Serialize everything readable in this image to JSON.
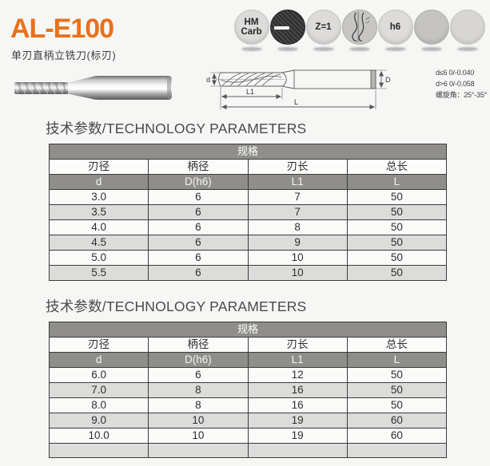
{
  "header": {
    "model": "AL-E100",
    "subtitle": "单刃直柄立铣刀(标刃)"
  },
  "badges": [
    {
      "label": "HM\nCarb",
      "name": "material-hm-carbide"
    },
    {
      "label": "",
      "name": "carbon-coating"
    },
    {
      "label": "Z=1",
      "name": "flute-count"
    },
    {
      "label": "",
      "name": "flute-sketch"
    },
    {
      "label": "h6",
      "name": "shank-tolerance"
    },
    {
      "label": "",
      "name": "blank-1"
    },
    {
      "label": "",
      "name": "blank-2"
    }
  ],
  "drawing": {
    "dim_d": "d",
    "dim_D": "D",
    "dim_L1": "L1",
    "dim_L": "L",
    "notes": [
      "d≤6  0/-0.040",
      "d>6  0/-0.058",
      "螺旋角：25°-35°"
    ]
  },
  "sections": [
    {
      "heading": "技术参数/TECHNOLOGY PARAMETERS",
      "table": {
        "group_header": "规格",
        "columns": [
          "刃径",
          "柄径",
          "刃长",
          "总长"
        ],
        "symbols": [
          "d",
          "D(h6)",
          "L1",
          "L"
        ],
        "rows": [
          [
            "3.0",
            "6",
            "7",
            "50"
          ],
          [
            "3.5",
            "6",
            "7",
            "50"
          ],
          [
            "4.0",
            "6",
            "8",
            "50"
          ],
          [
            "4.5",
            "6",
            "9",
            "50"
          ],
          [
            "5.0",
            "6",
            "10",
            "50"
          ],
          [
            "5.5",
            "6",
            "10",
            "50"
          ]
        ]
      }
    },
    {
      "heading": "技术参数/TECHNOLOGY PARAMETERS",
      "table": {
        "group_header": "规格",
        "columns": [
          "刃径",
          "柄径",
          "刃长",
          "总长"
        ],
        "symbols": [
          "d",
          "D(h6)",
          "L1",
          "L"
        ],
        "rows": [
          [
            "6.0",
            "6",
            "12",
            "50"
          ],
          [
            "7.0",
            "8",
            "16",
            "50"
          ],
          [
            "8.0",
            "8",
            "16",
            "50"
          ],
          [
            "9.0",
            "10",
            "19",
            "60"
          ],
          [
            "10.0",
            "10",
            "19",
            "60"
          ],
          [
            "",
            "",
            "",
            ""
          ]
        ]
      }
    }
  ],
  "colors": {
    "accent_orange": "#e8711c",
    "table_header_bg": "#908e8b",
    "row_stripe": "#dcdcda",
    "page_bg": "#f6f6f5"
  }
}
